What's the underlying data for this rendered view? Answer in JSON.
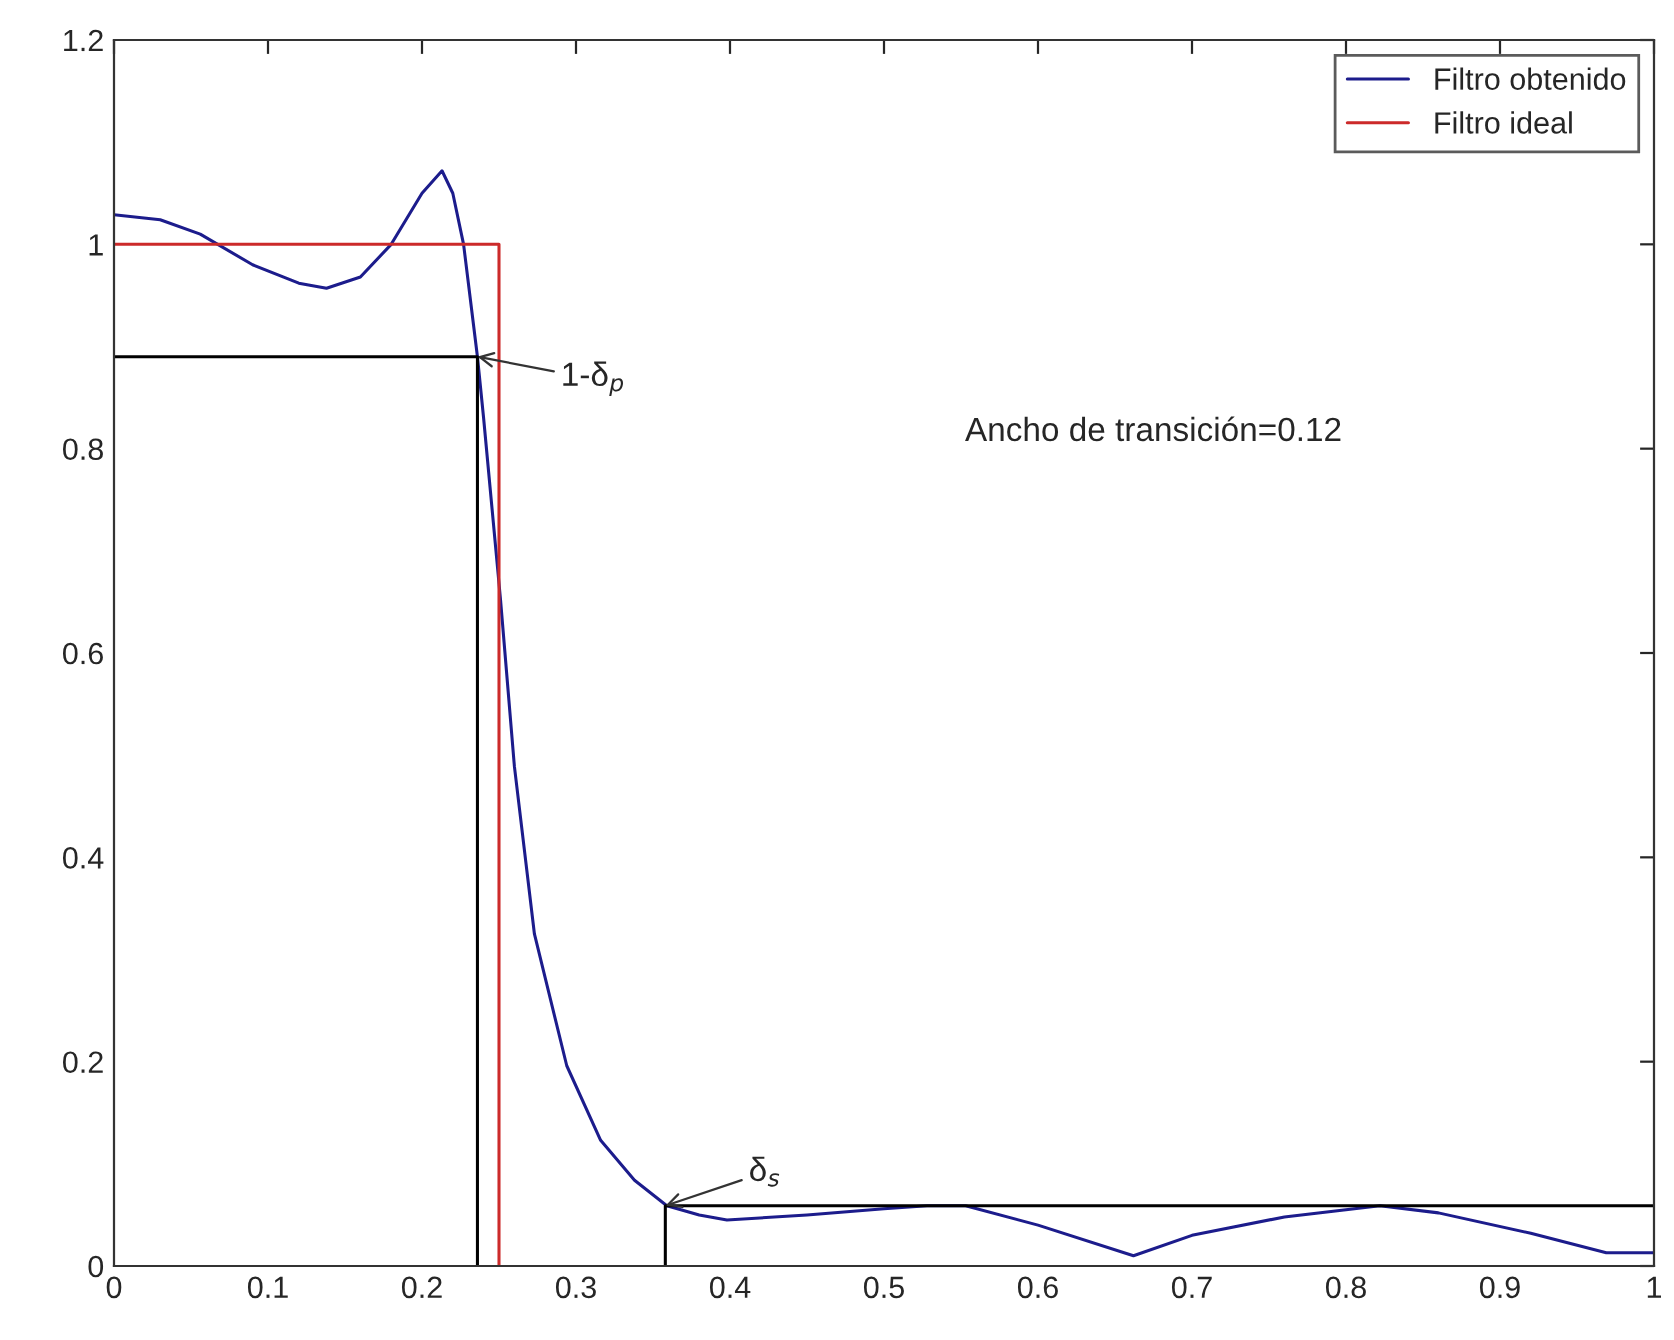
{
  "chart_data": {
    "type": "line",
    "xlim": [
      0,
      1
    ],
    "ylim": [
      0,
      1.2
    ],
    "xticks": [
      0,
      0.1,
      0.2,
      0.3,
      0.4,
      0.5,
      0.6,
      0.7,
      0.8,
      0.9,
      1
    ],
    "yticks": [
      0,
      0.2,
      0.4,
      0.6,
      0.8,
      1,
      1.2
    ],
    "grid": false,
    "legend": "top right",
    "marker": "none",
    "line_style": "solid",
    "series": [
      {
        "name": "Filtro obtenido",
        "color": "#1c1c8c",
        "x": [
          0,
          0.03,
          0.056,
          0.09,
          0.12,
          0.138,
          0.16,
          0.18,
          0.2,
          0.213,
          0.22,
          0.227,
          0.236,
          0.24,
          0.251,
          0.26,
          0.273,
          0.294,
          0.316,
          0.338,
          0.359,
          0.38,
          0.398,
          0.45,
          0.5,
          0.528,
          0.553,
          0.6,
          0.662,
          0.7,
          0.76,
          0.822,
          0.86,
          0.92,
          0.969,
          1
        ],
        "values": [
          1.029,
          1.024,
          1.01,
          0.98,
          0.962,
          0.957,
          0.968,
          1.0,
          1.05,
          1.072,
          1.05,
          1.0,
          0.89,
          0.83,
          0.652,
          0.489,
          0.325,
          0.196,
          0.123,
          0.084,
          0.059,
          0.05,
          0.045,
          0.05,
          0.056,
          0.059,
          0.059,
          0.04,
          0.01,
          0.03,
          0.048,
          0.059,
          0.052,
          0.032,
          0.013,
          0.013
        ]
      },
      {
        "name": "Filtro ideal",
        "color": "#cc2a2a",
        "x": [
          0,
          0.25,
          0.25
        ],
        "values": [
          1,
          1,
          0
        ]
      },
      {
        "color": "#000000",
        "x": [
          0,
          0.236,
          0.236
        ],
        "values": [
          0.89,
          0.89,
          0
        ]
      },
      {
        "color": "#000000",
        "x": [
          0.358,
          0.358,
          1
        ],
        "values": [
          0,
          0.059,
          0.059
        ]
      }
    ],
    "annotations": [
      {
        "text": "1-δ$_{p}$",
        "x": 0.236,
        "y": 0.89
      },
      {
        "text": "δ$_{s}$",
        "x": 0.358,
        "y": 0.059
      },
      "Ancho de transición=0.12"
    ]
  }
}
